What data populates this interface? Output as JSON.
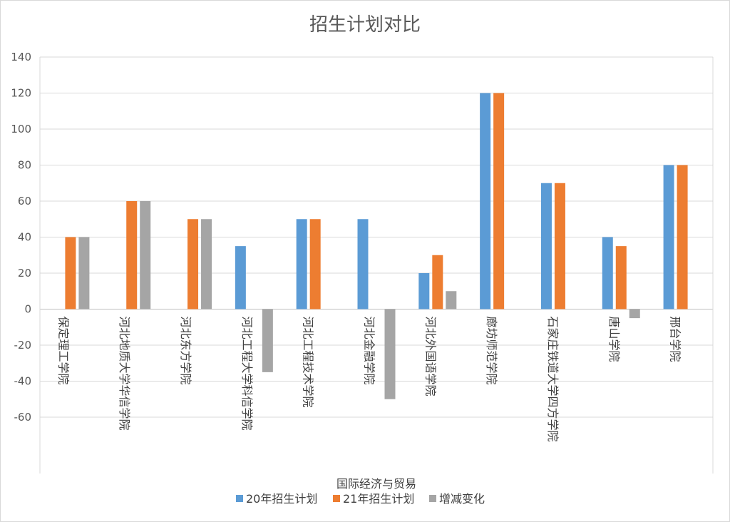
{
  "chart_data": {
    "type": "bar",
    "title": "招生计划对比",
    "xlabel": "国际经济与贸易",
    "ylabel": "",
    "ylim": [
      -60,
      140
    ],
    "yticks": [
      140,
      120,
      100,
      80,
      60,
      40,
      20,
      0,
      -20,
      -40,
      -60
    ],
    "grid": true,
    "legend_position": "bottom",
    "categories": [
      "保定理工学院",
      "河北地质大学华信学院",
      "河北东方学院",
      "河北工程大学科信学院",
      "河北工程技术学院",
      "河北金融学院",
      "河北外国语学院",
      "廊坊师范学院",
      "石家庄铁道大学四方学院",
      "唐山学院",
      "邢台学院"
    ],
    "series": [
      {
        "name": "20年招生计划",
        "color": "#5b9bd5",
        "values": [
          0,
          0,
          0,
          35,
          50,
          50,
          20,
          120,
          70,
          40,
          80
        ]
      },
      {
        "name": "21年招生计划",
        "color": "#ed7d31",
        "values": [
          40,
          60,
          50,
          0,
          50,
          0,
          30,
          120,
          70,
          35,
          80
        ]
      },
      {
        "name": "增减变化",
        "color": "#a5a5a5",
        "values": [
          40,
          60,
          50,
          -35,
          0,
          -50,
          10,
          0,
          0,
          -5,
          0
        ]
      }
    ]
  }
}
